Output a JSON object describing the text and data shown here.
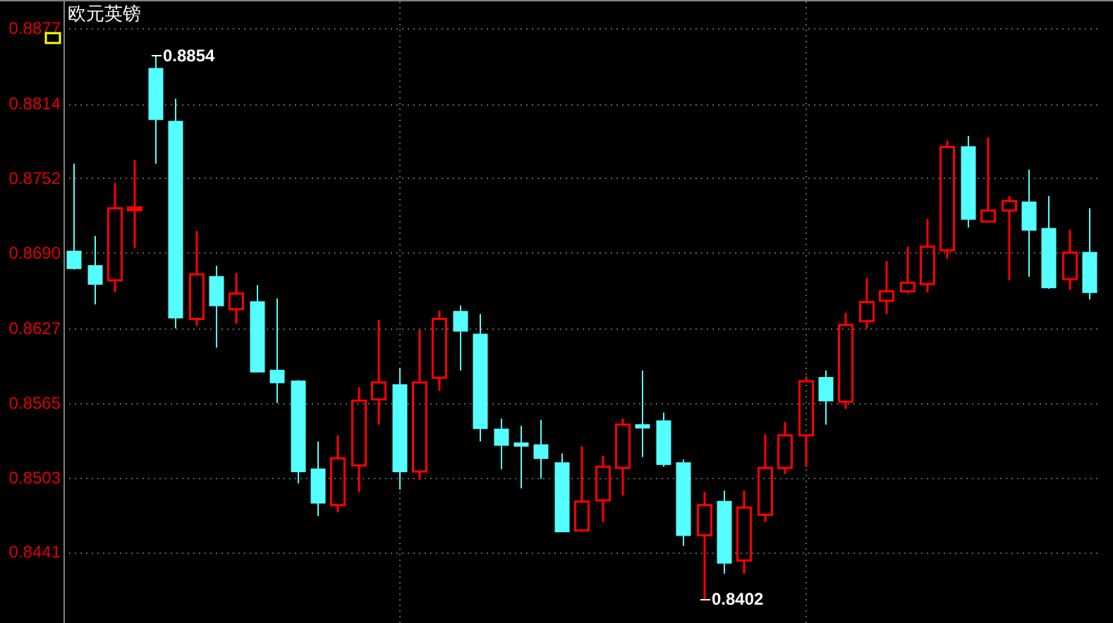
{
  "chart_data": {
    "type": "candlestick",
    "title": "欧元英镑",
    "categories": [
      null,
      null,
      null,
      null,
      null,
      null,
      null,
      null,
      null,
      null,
      null,
      null,
      null,
      null,
      null,
      null,
      null,
      null,
      null,
      null,
      null,
      null,
      null,
      null,
      null,
      null,
      null,
      null,
      null,
      null,
      null,
      null,
      null,
      null,
      null,
      null,
      null,
      null,
      null,
      null,
      null,
      null,
      null,
      null,
      null,
      null,
      null,
      null,
      null,
      null,
      null
    ],
    "ohlc": [
      [
        0.8691,
        0.8764,
        0.8676,
        0.8677
      ],
      [
        0.8679,
        0.8704,
        0.8647,
        0.8664
      ],
      [
        0.8667,
        0.8748,
        0.8657,
        0.8727
      ],
      [
        0.8726,
        0.8767,
        0.8694,
        0.8727
      ],
      [
        0.8843,
        0.8854,
        0.8764,
        0.8801
      ],
      [
        0.8799,
        0.8818,
        0.8627,
        0.8636
      ],
      [
        0.8635,
        0.8708,
        0.8629,
        0.8672
      ],
      [
        0.867,
        0.8679,
        0.8611,
        0.8646
      ],
      [
        0.8643,
        0.8673,
        0.8631,
        0.8656
      ],
      [
        0.8649,
        0.8663,
        0.8591,
        0.8591
      ],
      [
        0.8592,
        0.8652,
        0.8565,
        0.8582
      ],
      [
        0.8583,
        0.8584,
        0.8498,
        0.8508
      ],
      [
        0.851,
        0.8533,
        0.8471,
        0.8482
      ],
      [
        0.848,
        0.8538,
        0.8474,
        0.8519
      ],
      [
        0.8513,
        0.8578,
        0.8491,
        0.8567
      ],
      [
        0.8568,
        0.8634,
        0.8547,
        0.8582
      ],
      [
        0.858,
        0.8594,
        0.8493,
        0.8508
      ],
      [
        0.8508,
        0.8626,
        0.8501,
        0.8582
      ],
      [
        0.8586,
        0.8642,
        0.8575,
        0.8635
      ],
      [
        0.8641,
        0.8646,
        0.8592,
        0.8625
      ],
      [
        0.8622,
        0.8639,
        0.8533,
        0.8544
      ],
      [
        0.8543,
        0.8552,
        0.851,
        0.853
      ],
      [
        0.8531,
        0.8546,
        0.8494,
        0.853
      ],
      [
        0.853,
        0.8551,
        0.8502,
        0.8519
      ],
      [
        0.8515,
        0.8523,
        0.8458,
        0.8458
      ],
      [
        0.8459,
        0.8529,
        0.8458,
        0.8483
      ],
      [
        0.8484,
        0.8521,
        0.8466,
        0.8512
      ],
      [
        0.8511,
        0.8552,
        0.8488,
        0.8547
      ],
      [
        0.8546,
        0.8592,
        0.852,
        0.8545
      ],
      [
        0.855,
        0.8557,
        0.8512,
        0.8514
      ],
      [
        0.8515,
        0.8518,
        0.8446,
        0.8455
      ],
      [
        0.8455,
        0.8491,
        0.8402,
        0.848
      ],
      [
        0.8483,
        0.8492,
        0.8423,
        0.8432
      ],
      [
        0.8434,
        0.8492,
        0.8423,
        0.8478
      ],
      [
        0.8472,
        0.8539,
        0.8466,
        0.8511
      ],
      [
        0.8511,
        0.8549,
        0.8506,
        0.8538
      ],
      [
        0.8538,
        0.8587,
        0.8512,
        0.8583
      ],
      [
        0.8586,
        0.8592,
        0.8547,
        0.8567
      ],
      [
        0.8566,
        0.864,
        0.856,
        0.863
      ],
      [
        0.8633,
        0.8669,
        0.8627,
        0.8649
      ],
      [
        0.865,
        0.8683,
        0.8639,
        0.8658
      ],
      [
        0.8658,
        0.8695,
        0.8656,
        0.8665
      ],
      [
        0.8664,
        0.8718,
        0.8657,
        0.8695
      ],
      [
        0.8692,
        0.8783,
        0.8685,
        0.8778
      ],
      [
        0.8778,
        0.8787,
        0.8711,
        0.8718
      ],
      [
        0.8716,
        0.8786,
        0.8716,
        0.8725
      ],
      [
        0.8725,
        0.8737,
        0.8667,
        0.8733
      ],
      [
        0.8732,
        0.8759,
        0.867,
        0.8709
      ],
      [
        0.871,
        0.8737,
        0.866,
        0.8661
      ],
      [
        0.8668,
        0.8709,
        0.8659,
        0.869
      ],
      [
        0.869,
        0.8727,
        0.8651,
        0.8657
      ]
    ],
    "colors": [
      "#55ffff",
      "#55ffff",
      "#ff0000",
      "#ff0000",
      "#55ffff",
      "#55ffff",
      "#ff0000",
      "#55ffff",
      "#ff0000",
      "#55ffff",
      "#55ffff",
      "#55ffff",
      "#55ffff",
      "#ff0000",
      "#ff0000",
      "#ff0000",
      "#55ffff",
      "#ff0000",
      "#ff0000",
      "#55ffff",
      "#55ffff",
      "#55ffff",
      "#55ffff",
      "#55ffff",
      "#55ffff",
      "#ff0000",
      "#ff0000",
      "#ff0000",
      "#55ffff",
      "#55ffff",
      "#55ffff",
      "#ff0000",
      "#55ffff",
      "#ff0000",
      "#ff0000",
      "#ff0000",
      "#ff0000",
      "#55ffff",
      "#ff0000",
      "#ff0000",
      "#ff0000",
      "#ff0000",
      "#ff0000",
      "#ff0000",
      "#55ffff",
      "#ff0000",
      "#ff0000",
      "#55ffff",
      "#55ffff",
      "#ff0000",
      "#55ffff"
    ],
    "ylim": [
      0.8382,
      0.8899
    ],
    "yticks": [
      0.8441,
      0.8503,
      0.8565,
      0.8627,
      {
        "value": 0.869,
        "label": "0.8690"
      },
      0.8752,
      0.8814,
      0.8877
    ],
    "grid": "y",
    "annotations": [
      "0.8854",
      "0.8402"
    ]
  }
}
